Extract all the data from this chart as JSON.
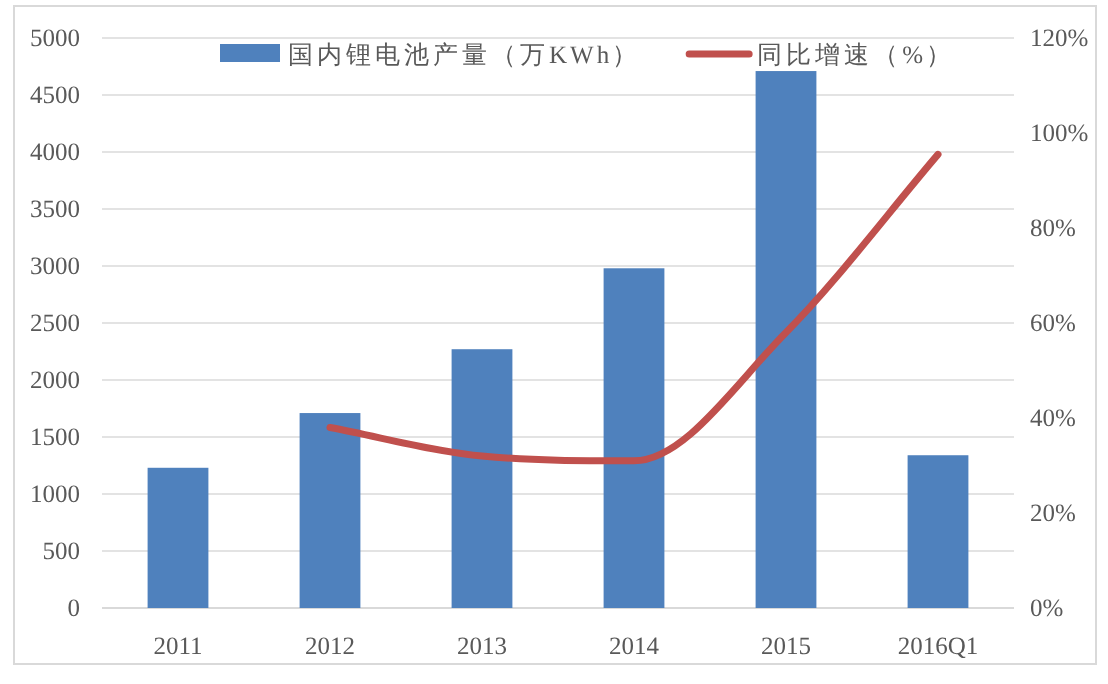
{
  "chart_data": {
    "type": "bar",
    "categories": [
      "2011",
      "2012",
      "2013",
      "2014",
      "2015",
      "2016Q1"
    ],
    "series": [
      {
        "name": "国内锂电池产量（万KWh）",
        "color": "#4f81bd",
        "values": [
          1230,
          1710,
          2270,
          2980,
          4710,
          1340
        ]
      },
      {
        "name": "同比增速（%）",
        "type": "line",
        "axis": "y2",
        "color": "#c0504d",
        "marker": "none",
        "line_style": "solid",
        "values": [
          null,
          38,
          32,
          31,
          58,
          95.5
        ]
      }
    ],
    "ylim": [
      0,
      5000
    ],
    "yticks": [
      0,
      500,
      1000,
      1500,
      2000,
      2500,
      3000,
      3500,
      4000,
      4500,
      5000
    ],
    "y2lim": [
      0,
      120
    ],
    "y2ticks": [
      {
        "value": 0,
        "label": "0%"
      },
      {
        "value": 20,
        "label": "20%"
      },
      {
        "value": 40,
        "label": "40%"
      },
      {
        "value": 60,
        "label": "60%"
      },
      {
        "value": 80,
        "label": "80%"
      },
      {
        "value": 100,
        "label": "100%"
      },
      {
        "value": 120,
        "label": "120%"
      }
    ],
    "grid": "y",
    "legend": "top"
  }
}
